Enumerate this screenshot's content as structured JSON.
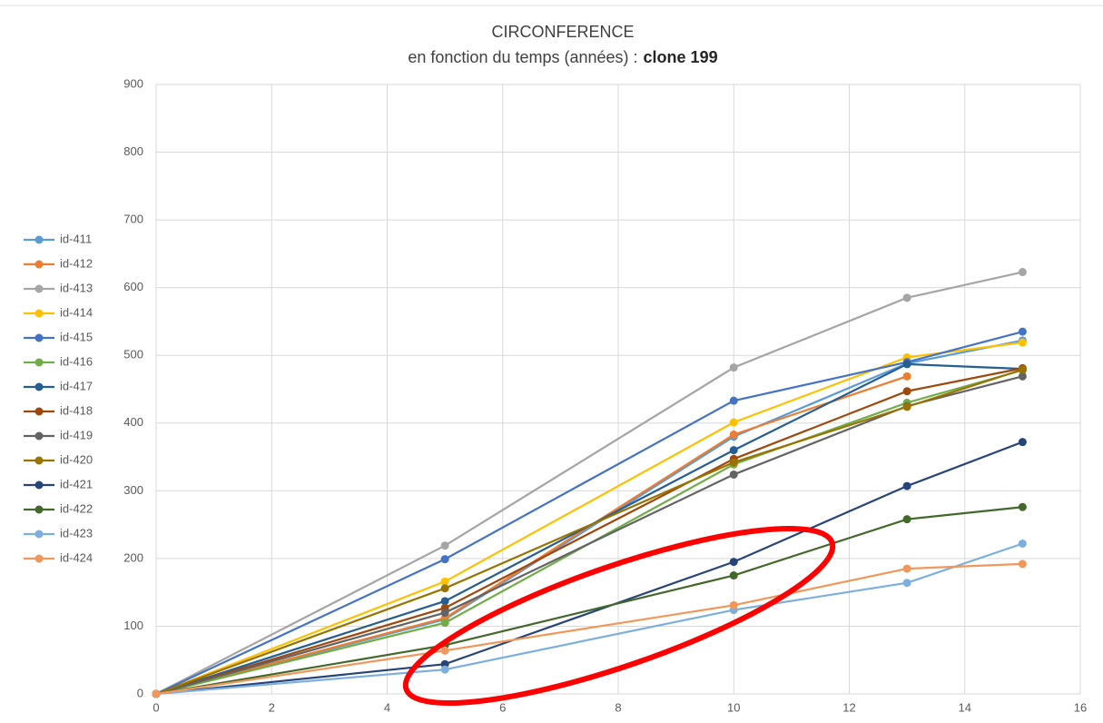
{
  "chart_data": {
    "type": "line",
    "title": "CIRCONFERENCE",
    "subtitle": "en fonction du temps (années) :",
    "subtitle_bold": "clone 199",
    "x": [
      0,
      5,
      10,
      13,
      15
    ],
    "xlim": [
      0,
      16
    ],
    "xticks": [
      0,
      2,
      4,
      6,
      8,
      10,
      12,
      14,
      16
    ],
    "ylim": [
      0,
      900
    ],
    "yticks": [
      0,
      100,
      200,
      300,
      400,
      500,
      600,
      700,
      800,
      900
    ],
    "grid": true,
    "legend": "left",
    "series": [
      {
        "name": "id-411",
        "color": "#5b9bd5",
        "values": [
          0,
          110,
          380,
          488,
          522
        ]
      },
      {
        "name": "id-412",
        "color": "#ed7d31",
        "values": [
          0,
          112,
          383,
          469,
          null
        ]
      },
      {
        "name": "id-413",
        "color": "#a5a5a5",
        "values": [
          0,
          219,
          482,
          585,
          623
        ]
      },
      {
        "name": "id-414",
        "color": "#ffc000",
        "values": [
          0,
          166,
          401,
          497,
          519
        ]
      },
      {
        "name": "id-415",
        "color": "#4472c4",
        "values": [
          0,
          199,
          433,
          490,
          535
        ]
      },
      {
        "name": "id-416",
        "color": "#70ad47",
        "values": [
          0,
          105,
          339,
          430,
          478
        ]
      },
      {
        "name": "id-417",
        "color": "#255e91",
        "values": [
          0,
          137,
          360,
          487,
          480
        ]
      },
      {
        "name": "id-418",
        "color": "#9e480e",
        "values": [
          0,
          127,
          347,
          447,
          481
        ]
      },
      {
        "name": "id-419",
        "color": "#636363",
        "values": [
          0,
          120,
          324,
          425,
          469
        ]
      },
      {
        "name": "id-420",
        "color": "#997300",
        "values": [
          0,
          156,
          342,
          424,
          479
        ]
      },
      {
        "name": "id-421",
        "color": "#264478",
        "values": [
          0,
          44,
          195,
          307,
          372
        ]
      },
      {
        "name": "id-422",
        "color": "#43682b",
        "values": [
          0,
          72,
          175,
          258,
          276
        ]
      },
      {
        "name": "id-423",
        "color": "#7cafdd",
        "values": [
          0,
          36,
          124,
          164,
          222
        ]
      },
      {
        "name": "id-424",
        "color": "#f1975a",
        "values": [
          0,
          64,
          131,
          185,
          192
        ]
      }
    ]
  }
}
